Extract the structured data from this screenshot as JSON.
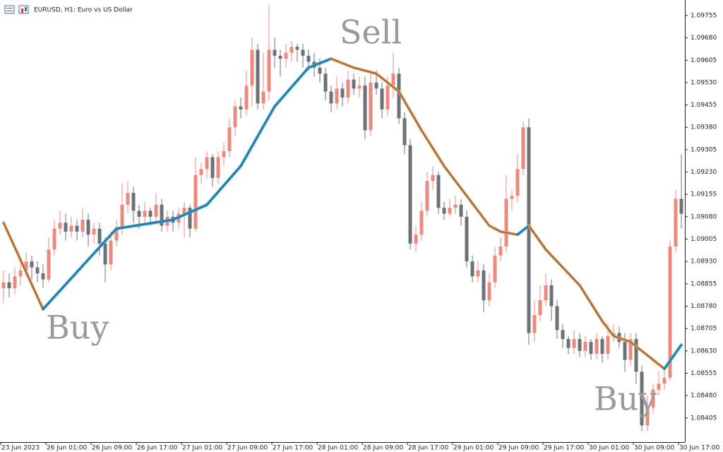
{
  "chart_data": {
    "type": "candlestick",
    "title": "EURUSD, H1:  Euro vs US Dollar",
    "categories": [
      "23 Jun 2023",
      null,
      null,
      null,
      null,
      null,
      null,
      null,
      "26 Jun 01:00",
      null,
      null,
      null,
      null,
      null,
      null,
      null,
      "26 Jun 09:00",
      null,
      null,
      null,
      null,
      null,
      null,
      null,
      "26 Jun 17:00",
      null,
      null,
      null,
      null,
      null,
      null,
      null,
      "27 Jun 01:00",
      null,
      null,
      null,
      null,
      null,
      null,
      null,
      "27 Jun 09:00",
      null,
      null,
      null,
      null,
      null,
      null,
      null,
      "27 Jun 17:00",
      null,
      null,
      null,
      null,
      null,
      null,
      null,
      "28 Jun 01:00",
      null,
      null,
      null,
      null,
      null,
      null,
      null,
      "28 Jun 09:00",
      null,
      null,
      null,
      null,
      null,
      null,
      null,
      "28 Jun 17:00",
      null,
      null,
      null,
      null,
      null,
      null,
      null,
      "29 Jun 01:00",
      null,
      null,
      null,
      null,
      null,
      null,
      null,
      "29 Jun 09:00",
      null,
      null,
      null,
      null,
      null,
      null,
      null,
      "29 Jun 17:00",
      null,
      null,
      null,
      null,
      null,
      null,
      null,
      "30 Jun 01:00",
      null,
      null,
      null,
      null,
      null,
      null,
      null,
      "30 Jun 09:00",
      null,
      null,
      null,
      null,
      null,
      null,
      null,
      "30 Jun 17:00"
    ],
    "candles": [
      [
        1.0884,
        1.089,
        1.0879,
        1.0886
      ],
      [
        1.0886,
        1.0889,
        1.0881,
        1.0884
      ],
      [
        1.0884,
        1.0891,
        1.0882,
        1.0888
      ],
      [
        1.0888,
        1.0893,
        1.0885,
        1.089
      ],
      [
        1.089,
        1.0896,
        1.0888,
        1.0893
      ],
      [
        1.0893,
        1.0895,
        1.0887,
        1.0891
      ],
      [
        1.0891,
        1.0893,
        1.0886,
        1.0889
      ],
      [
        1.0889,
        1.0892,
        1.0884,
        1.0887
      ],
      [
        1.0887,
        1.0901,
        1.0886,
        1.0897
      ],
      [
        1.0897,
        1.0907,
        1.0895,
        1.0904
      ],
      [
        1.0904,
        1.091,
        1.0902,
        1.0906
      ],
      [
        1.0906,
        1.0909,
        1.09,
        1.0903
      ],
      [
        1.0903,
        1.0908,
        1.0901,
        1.0905
      ],
      [
        1.0905,
        1.0907,
        1.09,
        1.0903
      ],
      [
        1.0903,
        1.0911,
        1.0901,
        1.0907
      ],
      [
        1.0907,
        1.0909,
        1.0898,
        1.0902
      ],
      [
        1.0902,
        1.0906,
        1.0899,
        1.0904
      ],
      [
        1.0904,
        1.0906,
        1.0895,
        1.0899
      ],
      [
        1.0899,
        1.0901,
        1.0886,
        1.0892
      ],
      [
        1.0892,
        1.0903,
        1.089,
        1.09
      ],
      [
        1.09,
        1.0907,
        1.0898,
        1.0904
      ],
      [
        1.0904,
        1.0919,
        1.0902,
        1.0912
      ],
      [
        1.0912,
        1.092,
        1.0909,
        1.0916
      ],
      [
        1.0916,
        1.0918,
        1.0906,
        1.091
      ],
      [
        1.091,
        1.0912,
        1.0904,
        1.0908
      ],
      [
        1.0908,
        1.0913,
        1.0906,
        1.091
      ],
      [
        1.091,
        1.0911,
        1.0905,
        1.0908
      ],
      [
        1.0908,
        1.0916,
        1.0906,
        1.0912
      ],
      [
        1.0912,
        1.0914,
        1.0903,
        1.0905
      ],
      [
        1.0905,
        1.091,
        1.0903,
        1.0908
      ],
      [
        1.0908,
        1.091,
        1.0903,
        1.0906
      ],
      [
        1.0906,
        1.0911,
        1.0904,
        1.0909
      ],
      [
        1.0909,
        1.0913,
        1.0901,
        1.0911
      ],
      [
        1.0911,
        1.0912,
        1.0901,
        1.0904
      ],
      [
        1.0904,
        1.0928,
        1.0903,
        1.0922
      ],
      [
        1.0922,
        1.0926,
        1.0919,
        1.0924
      ],
      [
        1.0924,
        1.093,
        1.0921,
        1.0928
      ],
      [
        1.0928,
        1.0929,
        1.0918,
        1.0921
      ],
      [
        1.0921,
        1.093,
        1.0919,
        1.0928
      ],
      [
        1.0928,
        1.0933,
        1.0925,
        1.093
      ],
      [
        1.093,
        1.0941,
        1.0928,
        1.0938
      ],
      [
        1.0938,
        1.0947,
        1.0935,
        1.0945
      ],
      [
        1.0945,
        1.0948,
        1.0941,
        1.0944
      ],
      [
        1.0944,
        1.0957,
        1.0942,
        1.0952
      ],
      [
        1.0952,
        1.0968,
        1.0945,
        1.0964
      ],
      [
        1.0964,
        1.0966,
        1.0944,
        1.0946
      ],
      [
        1.0946,
        1.0963,
        1.0944,
        1.095
      ],
      [
        1.095,
        1.0979,
        1.0947,
        1.0964
      ],
      [
        1.0964,
        1.0968,
        1.0958,
        1.0962
      ],
      [
        1.0962,
        1.0964,
        1.0955,
        1.0961
      ],
      [
        1.0961,
        1.0966,
        1.0958,
        1.0963
      ],
      [
        1.0963,
        1.0967,
        1.096,
        1.0965
      ],
      [
        1.0965,
        1.0966,
        1.096,
        1.0964
      ],
      [
        1.0964,
        1.0966,
        1.0958,
        1.0962
      ],
      [
        1.0962,
        1.0964,
        1.0957,
        1.096
      ],
      [
        1.096,
        1.0963,
        1.0955,
        1.0958
      ],
      [
        1.0958,
        1.0961,
        1.0953,
        1.0956
      ],
      [
        1.0956,
        1.0958,
        1.0947,
        1.095
      ],
      [
        1.095,
        1.0952,
        1.0943,
        1.0946
      ],
      [
        1.0946,
        1.0955,
        1.0944,
        1.0951
      ],
      [
        1.0951,
        1.0953,
        1.0945,
        1.0948
      ],
      [
        1.0948,
        1.0957,
        1.0946,
        1.0954
      ],
      [
        1.0954,
        1.0956,
        1.0949,
        1.0951
      ],
      [
        1.0951,
        1.0955,
        1.0948,
        1.0952
      ],
      [
        1.0952,
        1.0955,
        1.0934,
        1.0937
      ],
      [
        1.0937,
        1.0956,
        1.0935,
        1.0953
      ],
      [
        1.0953,
        1.0957,
        1.0949,
        1.0951
      ],
      [
        1.0951,
        1.0953,
        1.0941,
        1.0944
      ],
      [
        1.0944,
        1.0955,
        1.0942,
        1.0952
      ],
      [
        1.0952,
        1.0963,
        1.0948,
        1.0956
      ],
      [
        1.0956,
        1.0958,
        1.0939,
        1.0941
      ],
      [
        1.0941,
        1.0943,
        1.0929,
        1.0932
      ],
      [
        1.0932,
        1.0934,
        1.0897,
        1.0899
      ],
      [
        1.0899,
        1.0905,
        1.0896,
        1.0902
      ],
      [
        1.0902,
        1.0913,
        1.09,
        1.091
      ],
      [
        1.091,
        1.0923,
        1.0908,
        1.092
      ],
      [
        1.092,
        1.0925,
        1.0917,
        1.0922
      ],
      [
        1.0922,
        1.0923,
        1.0909,
        1.0911
      ],
      [
        1.0911,
        1.0913,
        1.0907,
        1.0909
      ],
      [
        1.0909,
        1.0914,
        1.0908,
        1.0911
      ],
      [
        1.0911,
        1.0915,
        1.0909,
        1.0912
      ],
      [
        1.0912,
        1.0914,
        1.0905,
        1.0908
      ],
      [
        1.0908,
        1.091,
        1.0891,
        1.0893
      ],
      [
        1.0893,
        1.0895,
        1.0886,
        1.0888
      ],
      [
        1.0888,
        1.0893,
        1.0886,
        1.089
      ],
      [
        1.089,
        1.0892,
        1.0876,
        1.088
      ],
      [
        1.088,
        1.0889,
        1.0878,
        1.0886
      ],
      [
        1.0886,
        1.0898,
        1.0884,
        1.0895
      ],
      [
        1.0895,
        1.0901,
        1.0893,
        1.0898
      ],
      [
        1.0898,
        1.0922,
        1.0896,
        1.0914
      ],
      [
        1.0914,
        1.0917,
        1.091,
        1.0915
      ],
      [
        1.0915,
        1.0929,
        1.0913,
        1.0924
      ],
      [
        1.0924,
        1.094,
        1.0922,
        1.0938
      ],
      [
        1.0938,
        1.0941,
        1.0865,
        1.0869
      ],
      [
        1.0869,
        1.088,
        1.0866,
        1.0875
      ],
      [
        1.0875,
        1.0885,
        1.0873,
        1.088
      ],
      [
        1.088,
        1.0889,
        1.0878,
        1.0885
      ],
      [
        1.0885,
        1.0887,
        1.0873,
        1.0878
      ],
      [
        1.0878,
        1.088,
        1.0867,
        1.087
      ],
      [
        1.087,
        1.0872,
        1.0864,
        1.0867
      ],
      [
        1.0867,
        1.0868,
        1.0862,
        1.0864
      ],
      [
        1.0864,
        1.087,
        1.0862,
        1.0867
      ],
      [
        1.0867,
        1.0869,
        1.0861,
        1.0863
      ],
      [
        1.0863,
        1.0868,
        1.0861,
        1.0866
      ],
      [
        1.0866,
        1.0867,
        1.086,
        1.0862
      ],
      [
        1.0862,
        1.0869,
        1.086,
        1.0867
      ],
      [
        1.0867,
        1.0868,
        1.0859,
        1.0862
      ],
      [
        1.0862,
        1.0872,
        1.086,
        1.0868
      ],
      [
        1.0868,
        1.0872,
        1.0866,
        1.0869
      ],
      [
        1.0869,
        1.0871,
        1.0864,
        1.0866
      ],
      [
        1.0866,
        1.0869,
        1.0856,
        1.086
      ],
      [
        1.086,
        1.0869,
        1.0858,
        1.0867
      ],
      [
        1.0867,
        1.0869,
        1.0852,
        1.0856
      ],
      [
        1.0856,
        1.0858,
        1.0836,
        1.0838
      ],
      [
        1.0838,
        1.0848,
        1.0836,
        1.0844
      ],
      [
        1.0844,
        1.0852,
        1.0842,
        1.085
      ],
      [
        1.085,
        1.0856,
        1.0848,
        1.0852
      ],
      [
        1.0852,
        1.0857,
        1.085,
        1.0854
      ],
      [
        1.0854,
        1.09,
        1.0853,
        1.0898
      ],
      [
        1.0898,
        1.0917,
        1.0896,
        1.0914
      ],
      [
        1.0914,
        1.0929,
        1.0904,
        1.0909
      ]
    ],
    "up_color": "#ec8a7d",
    "down_color": "#6d7178",
    "ma": {
      "x": [
        0,
        7,
        20,
        30,
        36,
        42,
        48,
        54,
        58,
        62,
        66,
        70,
        74,
        78,
        82,
        86,
        88,
        91,
        93,
        96,
        99,
        102,
        106,
        108,
        111,
        115,
        117,
        120
      ],
      "values": [
        1.0906,
        1.0877,
        1.0904,
        1.0907,
        1.0912,
        1.0925,
        1.0945,
        1.0958,
        1.0961,
        1.0958,
        1.0956,
        1.095,
        1.0937,
        1.0925,
        1.0915,
        1.0905,
        1.0903,
        1.0902,
        1.0905,
        1.0897,
        1.0891,
        1.0885,
        1.0873,
        1.0868,
        1.0866,
        1.086,
        1.0857,
        1.0865
      ],
      "up_color": "#1e9fe0",
      "down_color": "#e8954f"
    },
    "ylim": [
      1.08324,
      1.09807
    ],
    "yticks": [
      1.08405,
      {
        "value": 1.0848,
        "label": "1.08480"
      },
      1.08555,
      {
        "value": 1.0863,
        "label": "1.08630"
      },
      1.08705,
      {
        "value": 1.0878,
        "label": "1.08780"
      },
      1.08855,
      {
        "value": 1.0893,
        "label": "1.08930"
      },
      1.09005,
      {
        "value": 1.0908,
        "label": "1.09080"
      },
      1.09155,
      {
        "value": 1.0923,
        "label": "1.09230"
      },
      1.09305,
      {
        "value": 1.0938,
        "label": "1.09380"
      },
      1.09455,
      {
        "value": 1.0953,
        "label": "1.09530"
      },
      1.09605,
      {
        "value": 1.0968,
        "label": "1.09680"
      },
      1.09755
    ],
    "annotations": [
      {
        "text": "Buy",
        "x": 5,
        "y": 1.087
      },
      {
        "text": "Sell",
        "x": 57,
        "y": 1.0969
      },
      {
        "text": "Buy",
        "x": 102,
        "y": 1.0846
      }
    ]
  }
}
